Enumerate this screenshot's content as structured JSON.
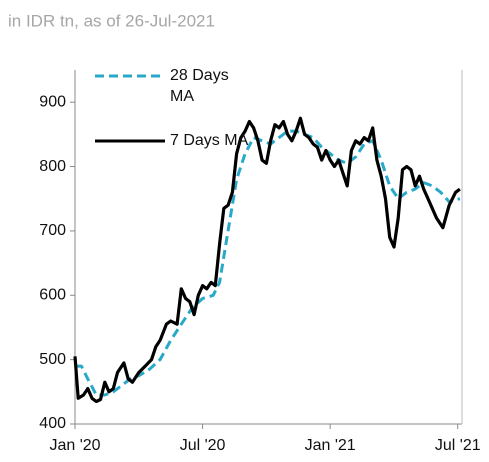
{
  "chart_data": {
    "type": "line",
    "subtitle": "in IDR tn, as of 26-Jul-2021",
    "xlim": [
      0,
      18.2
    ],
    "xticks": [
      {
        "value": 0,
        "label": "Jan '20"
      },
      {
        "value": 6,
        "label": "Jul '20"
      },
      {
        "value": 12,
        "label": "Jan '21"
      },
      {
        "value": 18,
        "label": "Jul '21"
      }
    ],
    "ylim": [
      400,
      950
    ],
    "yticks": [
      400,
      500,
      600,
      700,
      800,
      900
    ],
    "legend": "upper left",
    "series": [
      {
        "name": "28 Days MA",
        "color": "#29a9c9",
        "dash": true,
        "x": [
          0,
          0.3,
          0.6,
          1.0,
          1.4,
          1.8,
          2.2,
          2.6,
          3.0,
          3.5,
          4.0,
          4.5,
          5.0,
          5.5,
          6.0,
          6.5,
          6.8,
          7.0,
          7.3,
          7.6,
          8.0,
          8.4,
          8.8,
          9.2,
          9.6,
          10.0,
          10.4,
          10.8,
          11.2,
          11.6,
          12.0,
          12.4,
          12.8,
          13.2,
          13.6,
          14.0,
          14.4,
          14.8,
          15.2,
          15.6,
          16.0,
          16.4,
          16.8,
          17.2,
          17.6,
          18.1
        ],
        "values": [
          490,
          490,
          470,
          445,
          445,
          450,
          460,
          470,
          475,
          485,
          500,
          530,
          555,
          580,
          595,
          600,
          620,
          660,
          720,
          780,
          820,
          845,
          840,
          835,
          845,
          855,
          855,
          850,
          845,
          830,
          820,
          810,
          805,
          815,
          835,
          840,
          810,
          770,
          750,
          760,
          765,
          775,
          770,
          760,
          745,
          750
        ]
      },
      {
        "name": "7 Days MA",
        "color": "#000000",
        "dash": false,
        "x": [
          0,
          0.15,
          0.4,
          0.6,
          0.8,
          1.0,
          1.2,
          1.4,
          1.6,
          1.8,
          2.0,
          2.3,
          2.5,
          2.7,
          3.0,
          3.3,
          3.6,
          3.8,
          4.0,
          4.3,
          4.5,
          4.8,
          5.0,
          5.2,
          5.4,
          5.6,
          5.8,
          6.0,
          6.2,
          6.4,
          6.6,
          6.8,
          7.0,
          7.2,
          7.4,
          7.6,
          7.8,
          8.0,
          8.2,
          8.4,
          8.6,
          8.8,
          9.0,
          9.2,
          9.4,
          9.6,
          9.8,
          10.0,
          10.2,
          10.4,
          10.6,
          10.8,
          11.0,
          11.2,
          11.4,
          11.6,
          11.8,
          12.0,
          12.2,
          12.4,
          12.6,
          12.8,
          13.0,
          13.2,
          13.4,
          13.6,
          13.8,
          14.0,
          14.2,
          14.4,
          14.6,
          14.8,
          15.0,
          15.2,
          15.4,
          15.6,
          15.8,
          16.0,
          16.2,
          16.4,
          16.6,
          17.0,
          17.3,
          17.6,
          17.9,
          18.1
        ],
        "values": [
          505,
          440,
          445,
          455,
          440,
          435,
          438,
          465,
          450,
          455,
          480,
          495,
          470,
          465,
          480,
          490,
          500,
          520,
          530,
          555,
          560,
          555,
          610,
          595,
          590,
          570,
          600,
          615,
          610,
          620,
          615,
          680,
          735,
          740,
          760,
          820,
          845,
          855,
          870,
          860,
          840,
          810,
          805,
          840,
          865,
          860,
          870,
          850,
          840,
          855,
          875,
          850,
          845,
          835,
          830,
          810,
          825,
          810,
          800,
          810,
          790,
          770,
          825,
          840,
          835,
          845,
          840,
          860,
          810,
          785,
          750,
          690,
          675,
          720,
          795,
          800,
          795,
          770,
          785,
          765,
          750,
          720,
          705,
          740,
          760,
          765
        ]
      }
    ]
  }
}
